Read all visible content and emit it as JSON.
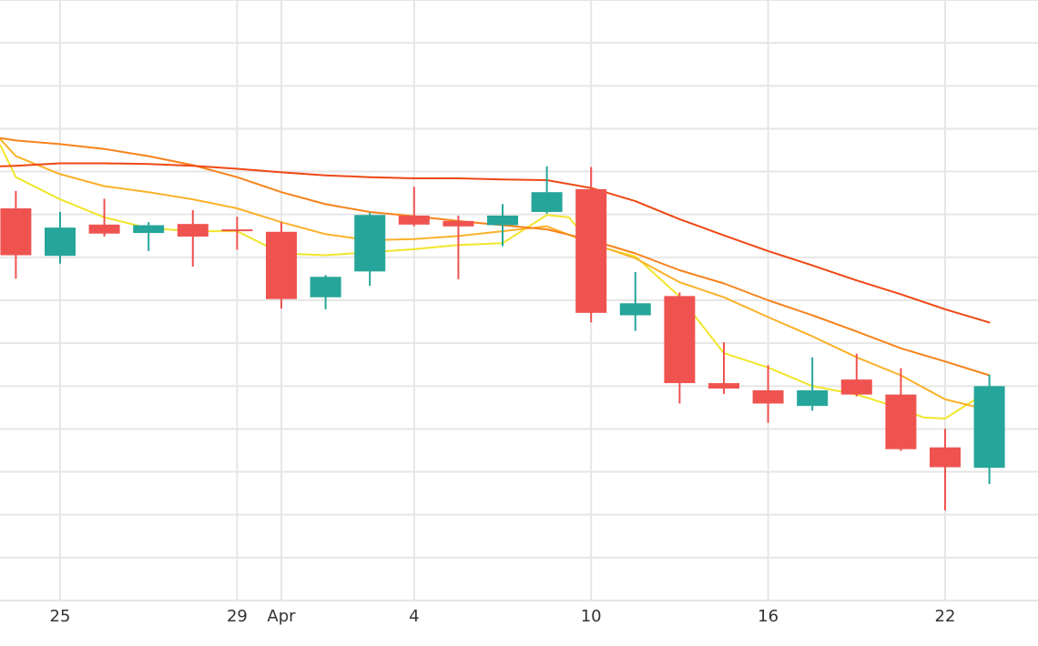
{
  "chart_data": {
    "type": "candlestick",
    "title": "",
    "xlabel": "",
    "ylabel": "",
    "grid": true,
    "legend": "none",
    "x_range": [
      -1.35,
      21.0
    ],
    "y_range": [
      0,
      100
    ],
    "x_ticks": [
      {
        "x": 0,
        "label": "25"
      },
      {
        "x": 4,
        "label": "29"
      },
      {
        "x": 5,
        "label": "Apr"
      },
      {
        "x": 8,
        "label": "4"
      },
      {
        "x": 12,
        "label": "10"
      },
      {
        "x": 16,
        "label": "16"
      },
      {
        "x": 20,
        "label": "22"
      }
    ],
    "y_gridlines": [
      0,
      7.14,
      14.29,
      21.43,
      28.57,
      35.71,
      42.86,
      50,
      57.14,
      64.29,
      71.43,
      78.57,
      85.71,
      92.86,
      100
    ],
    "up_color": "#26a69a",
    "down_color": "#ef5350",
    "candles": [
      {
        "x": -1,
        "open": 65.3,
        "high": 68.2,
        "low": 53.6,
        "close": 57.5
      },
      {
        "x": 0,
        "open": 57.4,
        "high": 64.7,
        "low": 56.1,
        "close": 62.1
      },
      {
        "x": 1,
        "open": 62.6,
        "high": 66.9,
        "low": 60.6,
        "close": 61.1
      },
      {
        "x": 2,
        "open": 61.2,
        "high": 63.0,
        "low": 58.2,
        "close": 62.5
      },
      {
        "x": 3,
        "open": 62.7,
        "high": 65.0,
        "low": 55.6,
        "close": 60.6
      },
      {
        "x": 4,
        "open": 61.8,
        "high": 63.9,
        "low": 58.4,
        "close": 61.5
      },
      {
        "x": 5,
        "open": 61.4,
        "high": 63.0,
        "low": 48.6,
        "close": 50.2
      },
      {
        "x": 6,
        "open": 50.5,
        "high": 54.2,
        "low": 48.5,
        "close": 53.9
      },
      {
        "x": 7,
        "open": 54.8,
        "high": 64.6,
        "low": 52.4,
        "close": 64.2
      },
      {
        "x": 8,
        "open": 64.1,
        "high": 68.9,
        "low": 62.3,
        "close": 62.6
      },
      {
        "x": 9,
        "open": 63.2,
        "high": 64.1,
        "low": 53.5,
        "close": 62.3
      },
      {
        "x": 10,
        "open": 62.5,
        "high": 66.0,
        "low": 59.0,
        "close": 64.1
      },
      {
        "x": 11,
        "open": 64.7,
        "high": 72.3,
        "low": 64.4,
        "close": 68.0
      },
      {
        "x": 12,
        "open": 68.5,
        "high": 72.2,
        "low": 46.3,
        "close": 47.9
      },
      {
        "x": 13,
        "open": 47.5,
        "high": 54.7,
        "low": 44.9,
        "close": 49.5
      },
      {
        "x": 14,
        "open": 50.7,
        "high": 51.3,
        "low": 32.8,
        "close": 36.2
      },
      {
        "x": 15,
        "open": 36.2,
        "high": 43.0,
        "low": 34.4,
        "close": 35.3
      },
      {
        "x": 16,
        "open": 35.0,
        "high": 39.2,
        "low": 29.6,
        "close": 32.8
      },
      {
        "x": 17,
        "open": 32.4,
        "high": 40.5,
        "low": 31.6,
        "close": 35.0
      },
      {
        "x": 18,
        "open": 36.8,
        "high": 41.1,
        "low": 34.0,
        "close": 34.3
      },
      {
        "x": 19,
        "open": 34.3,
        "high": 38.7,
        "low": 24.9,
        "close": 25.2
      },
      {
        "x": 20,
        "open": 25.5,
        "high": 28.6,
        "low": 15.0,
        "close": 22.2
      },
      {
        "x": 21,
        "open": 22.1,
        "high": 37.6,
        "low": 19.4,
        "close": 35.7
      }
    ],
    "series": [
      {
        "type": "line",
        "color": "#f2e52b",
        "values": [
          {
            "x": -1.35,
            "y": 75.8
          },
          {
            "x": -1,
            "y": 70.5
          },
          {
            "x": 0,
            "y": 66.8
          },
          {
            "x": 1,
            "y": 63.8
          },
          {
            "x": 2,
            "y": 62.0
          },
          {
            "x": 3,
            "y": 61.5
          },
          {
            "x": 4,
            "y": 61.5
          },
          {
            "x": 5,
            "y": 57.8
          },
          {
            "x": 6,
            "y": 57.5
          },
          {
            "x": 7,
            "y": 58.0
          },
          {
            "x": 8,
            "y": 58.5
          },
          {
            "x": 9,
            "y": 59.2
          },
          {
            "x": 10,
            "y": 59.5
          },
          {
            "x": 11,
            "y": 64.2
          },
          {
            "x": 11.5,
            "y": 63.8
          },
          {
            "x": 12,
            "y": 59.3
          },
          {
            "x": 13,
            "y": 57.3
          },
          {
            "x": 14,
            "y": 50.6
          },
          {
            "x": 15,
            "y": 41.2
          },
          {
            "x": 16,
            "y": 38.8
          },
          {
            "x": 17,
            "y": 35.7
          },
          {
            "x": 18,
            "y": 34.3
          },
          {
            "x": 19,
            "y": 32.0
          },
          {
            "x": 19.5,
            "y": 30.5
          },
          {
            "x": 20,
            "y": 30.3
          },
          {
            "x": 21,
            "y": 35.0
          }
        ]
      },
      {
        "type": "line",
        "color": "#fbb12a",
        "values": [
          {
            "x": -1.35,
            "y": 76.8
          },
          {
            "x": -1,
            "y": 74.0
          },
          {
            "x": 0,
            "y": 71.0
          },
          {
            "x": 1,
            "y": 69.0
          },
          {
            "x": 2,
            "y": 68.0
          },
          {
            "x": 3,
            "y": 66.8
          },
          {
            "x": 4,
            "y": 65.3
          },
          {
            "x": 5,
            "y": 63.0
          },
          {
            "x": 6,
            "y": 61.0
          },
          {
            "x": 7,
            "y": 60.0
          },
          {
            "x": 8,
            "y": 60.2
          },
          {
            "x": 9,
            "y": 60.7
          },
          {
            "x": 10,
            "y": 61.5
          },
          {
            "x": 11,
            "y": 62.3
          },
          {
            "x": 12,
            "y": 59.5
          },
          {
            "x": 13,
            "y": 57.0
          },
          {
            "x": 14,
            "y": 53.0
          },
          {
            "x": 15,
            "y": 50.5
          },
          {
            "x": 16,
            "y": 47.2
          },
          {
            "x": 17,
            "y": 44.0
          },
          {
            "x": 18,
            "y": 40.5
          },
          {
            "x": 19,
            "y": 37.5
          },
          {
            "x": 20,
            "y": 33.5
          },
          {
            "x": 21,
            "y": 31.7
          }
        ]
      },
      {
        "type": "line",
        "color": "#f7831c",
        "values": [
          {
            "x": -1.35,
            "y": 77.0
          },
          {
            "x": -1,
            "y": 76.6
          },
          {
            "x": 0,
            "y": 76.0
          },
          {
            "x": 1,
            "y": 75.2
          },
          {
            "x": 2,
            "y": 74.0
          },
          {
            "x": 3,
            "y": 72.5
          },
          {
            "x": 4,
            "y": 70.5
          },
          {
            "x": 5,
            "y": 68.0
          },
          {
            "x": 6,
            "y": 66.0
          },
          {
            "x": 7,
            "y": 64.7
          },
          {
            "x": 8,
            "y": 64.0
          },
          {
            "x": 9,
            "y": 63.2
          },
          {
            "x": 10,
            "y": 62.5
          },
          {
            "x": 11,
            "y": 61.8
          },
          {
            "x": 12,
            "y": 60.0
          },
          {
            "x": 13,
            "y": 57.8
          },
          {
            "x": 14,
            "y": 55.0
          },
          {
            "x": 15,
            "y": 52.8
          },
          {
            "x": 16,
            "y": 50.0
          },
          {
            "x": 17,
            "y": 47.5
          },
          {
            "x": 18,
            "y": 44.8
          },
          {
            "x": 19,
            "y": 42.0
          },
          {
            "x": 20,
            "y": 39.8
          },
          {
            "x": 21,
            "y": 37.5
          }
        ]
      },
      {
        "type": "line",
        "color": "#ee4813",
        "values": [
          {
            "x": -1.35,
            "y": 72.3
          },
          {
            "x": -1,
            "y": 72.4
          },
          {
            "x": 0,
            "y": 72.8
          },
          {
            "x": 1,
            "y": 72.8
          },
          {
            "x": 2,
            "y": 72.7
          },
          {
            "x": 3,
            "y": 72.4
          },
          {
            "x": 4,
            "y": 71.9
          },
          {
            "x": 5,
            "y": 71.3
          },
          {
            "x": 6,
            "y": 70.8
          },
          {
            "x": 7,
            "y": 70.5
          },
          {
            "x": 8,
            "y": 70.3
          },
          {
            "x": 9,
            "y": 70.3
          },
          {
            "x": 10,
            "y": 70.1
          },
          {
            "x": 11,
            "y": 70.0
          },
          {
            "x": 12,
            "y": 68.7
          },
          {
            "x": 13,
            "y": 66.5
          },
          {
            "x": 14,
            "y": 63.5
          },
          {
            "x": 15,
            "y": 60.8
          },
          {
            "x": 16,
            "y": 58.2
          },
          {
            "x": 17,
            "y": 55.8
          },
          {
            "x": 18,
            "y": 53.3
          },
          {
            "x": 19,
            "y": 51.0
          },
          {
            "x": 20,
            "y": 48.5
          },
          {
            "x": 21,
            "y": 46.3
          }
        ]
      }
    ]
  }
}
